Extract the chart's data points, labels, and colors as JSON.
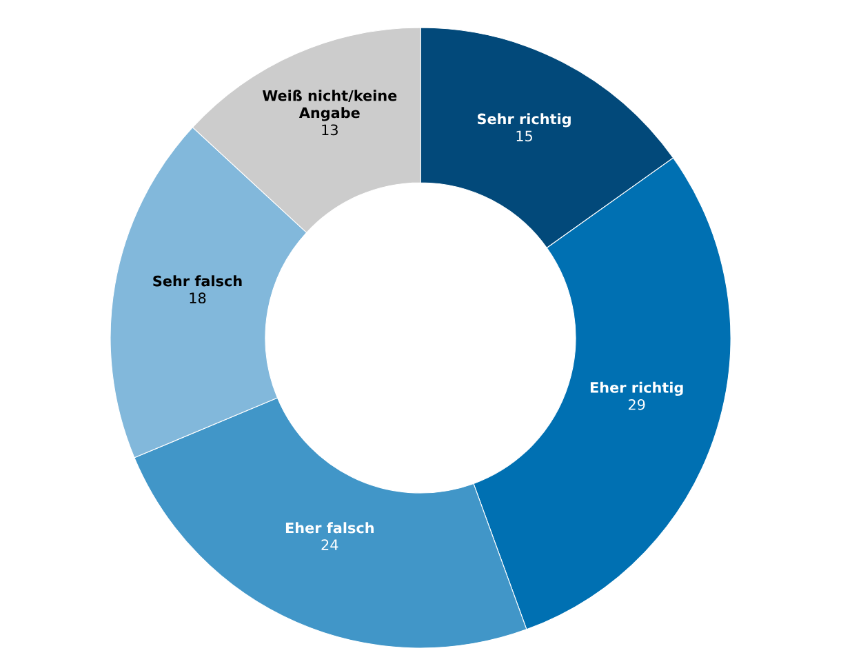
{
  "chart_data": {
    "type": "donut",
    "categories": [
      "Sehr richtig",
      "Eher richtig",
      "Eher falsch",
      "Sehr falsch",
      "Weiß nicht/keine Angabe"
    ],
    "values": [
      15,
      29,
      24,
      18,
      13
    ],
    "colors": [
      "#02497a",
      "#0070b2",
      "#4196c8",
      "#82b8db",
      "#cccccc"
    ],
    "data_labels": true
  }
}
